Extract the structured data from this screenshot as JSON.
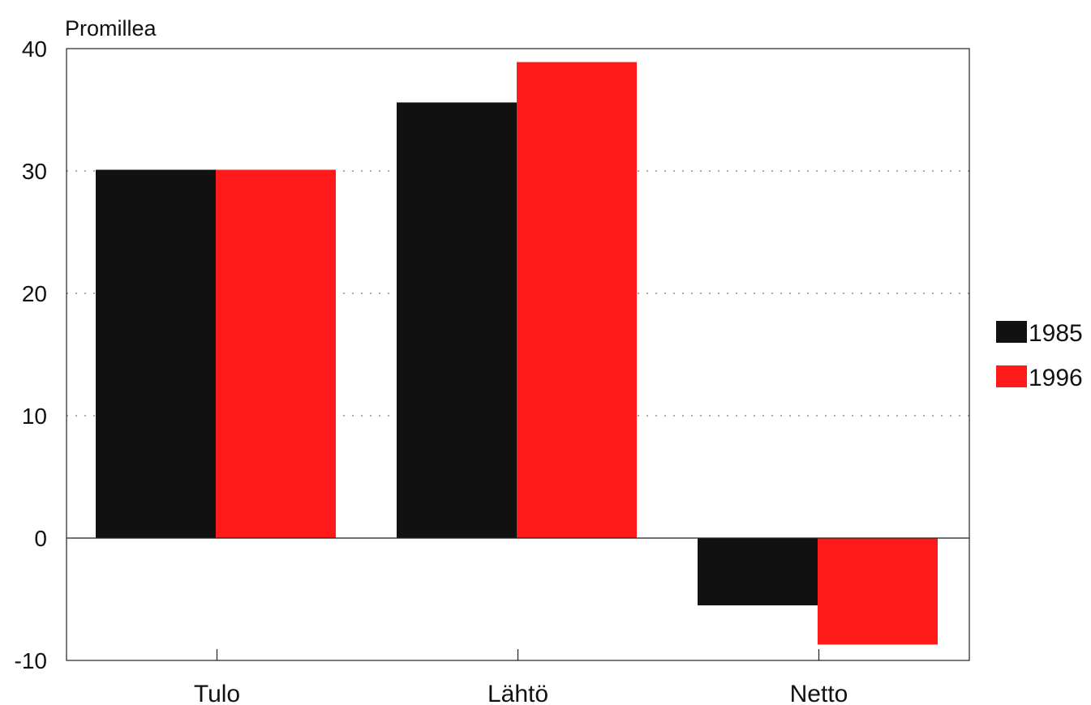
{
  "chart_data": {
    "type": "bar",
    "ylabel": "Promillea",
    "categories": [
      "Tulo",
      "Lähtö",
      "Netto"
    ],
    "series": [
      {
        "name": "1985",
        "values": [
          30.1,
          35.6,
          -5.5
        ],
        "color": "#111111"
      },
      {
        "name": "1996",
        "values": [
          30.1,
          38.9,
          -8.7
        ],
        "color": "#ff1a1a"
      }
    ],
    "ylim": [
      -10,
      40
    ],
    "yticks": [
      -10,
      0,
      10,
      20,
      30,
      40
    ],
    "grid": "dotted horizontal at 10, 20, 30",
    "legend_position": "right"
  }
}
